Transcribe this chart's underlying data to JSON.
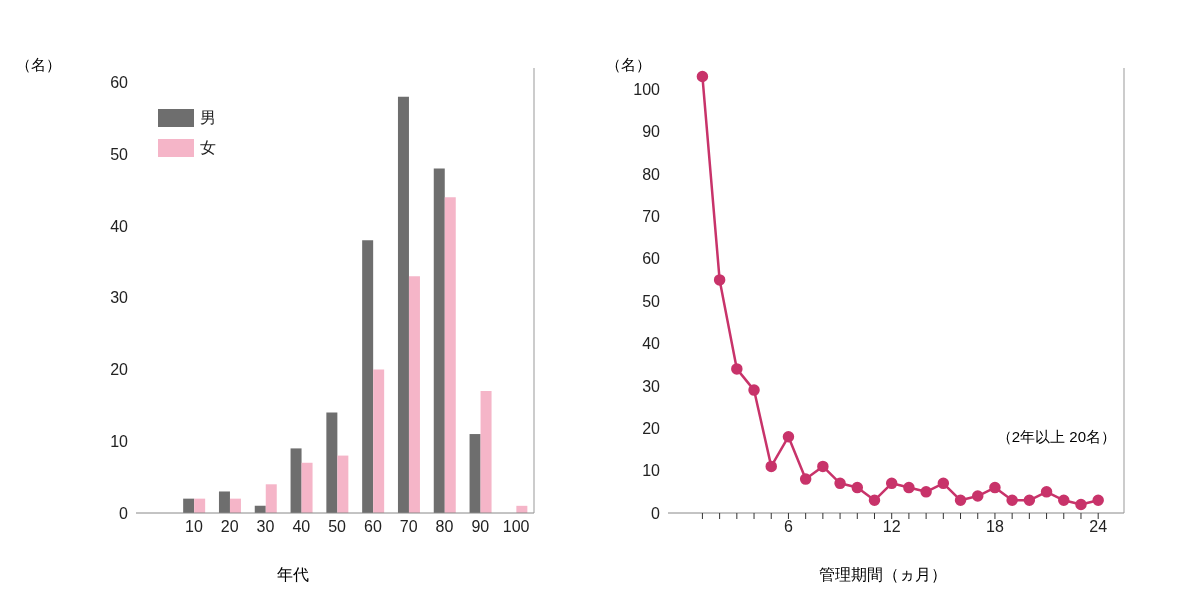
{
  "chart_data": [
    {
      "type": "bar",
      "ylabel": "（名）",
      "xlabel": "年代",
      "categories": [
        "10",
        "20",
        "30",
        "40",
        "50",
        "60",
        "70",
        "80",
        "90",
        "100"
      ],
      "series": [
        {
          "name": "男",
          "color": "#6e6e6e",
          "values": [
            2,
            3,
            1,
            9,
            14,
            38,
            58,
            48,
            11,
            0
          ]
        },
        {
          "name": "女",
          "color": "#f5b5c8",
          "values": [
            2,
            2,
            4,
            7,
            8,
            20,
            33,
            44,
            17,
            1
          ]
        }
      ],
      "ylim": [
        0,
        62
      ],
      "yticks": [
        0,
        10,
        20,
        30,
        40,
        50,
        60
      ],
      "grid": false,
      "legend": "top left"
    },
    {
      "type": "line",
      "ylabel": "（名）",
      "xlabel": "管理期間（ヵ月）",
      "x": [
        1,
        2,
        3,
        4,
        5,
        6,
        7,
        8,
        9,
        10,
        11,
        12,
        13,
        14,
        15,
        16,
        17,
        18,
        19,
        20,
        21,
        22,
        23,
        24
      ],
      "series": [
        {
          "color": "#c8336a",
          "values": [
            103,
            55,
            34,
            29,
            11,
            18,
            8,
            11,
            7,
            6,
            3,
            7,
            6,
            5,
            7,
            3,
            4,
            6,
            3,
            3,
            5,
            3,
            2,
            3
          ]
        }
      ],
      "xlim": [
        -1,
        25.5
      ],
      "xticks": [
        {
          "value": 1,
          "label": null
        },
        {
          "value": 2,
          "label": null
        },
        {
          "value": 3,
          "label": null
        },
        {
          "value": 4,
          "label": null
        },
        {
          "value": 5,
          "label": null
        },
        6,
        {
          "value": 7,
          "label": null
        },
        {
          "value": 8,
          "label": null
        },
        {
          "value": 9,
          "label": null
        },
        {
          "value": 10,
          "label": null
        },
        {
          "value": 11,
          "label": null
        },
        12,
        {
          "value": 13,
          "label": null
        },
        {
          "value": 14,
          "label": null
        },
        {
          "value": 15,
          "label": null
        },
        {
          "value": 16,
          "label": null
        },
        {
          "value": 17,
          "label": null
        },
        18,
        {
          "value": 19,
          "label": null
        },
        {
          "value": 20,
          "label": null
        },
        {
          "value": 21,
          "label": null
        },
        {
          "value": 22,
          "label": null
        },
        {
          "value": 23,
          "label": null
        },
        24
      ],
      "ylim": [
        0,
        105
      ],
      "yticks": [
        0,
        10,
        20,
        30,
        40,
        50,
        60,
        70,
        80,
        90,
        100
      ],
      "grid": false,
      "marker": "circle",
      "line_style": "solid",
      "annotations": [
        "（2年以上 20名）"
      ]
    }
  ]
}
